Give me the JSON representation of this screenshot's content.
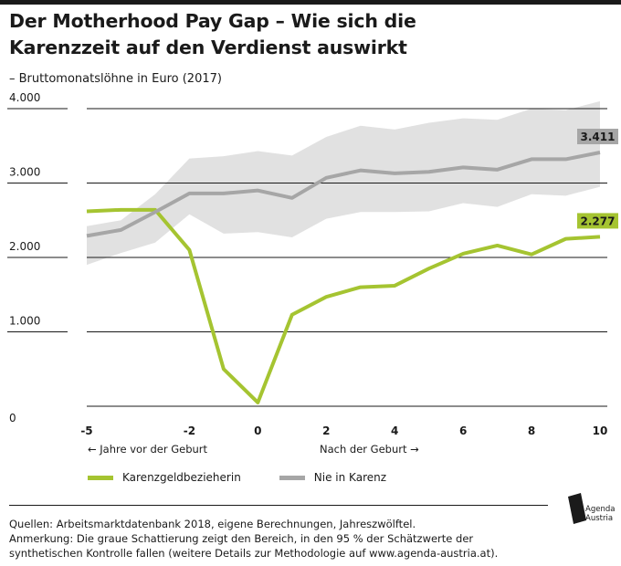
{
  "title_line1": "Der Motherhood Pay Gap – Wie sich die",
  "title_line2": "Karenzzeit auf den Verdienst auswirkt",
  "subtitle": "– Bruttomonatslöhne in Euro (2017)",
  "axis_notes": {
    "left": "← Jahre vor der Geburt",
    "right": "Nach der Geburt →"
  },
  "legend": [
    {
      "label": "Karenzgeldbezieherin",
      "color": "#a5c431"
    },
    {
      "label": "Nie in Karenz",
      "color": "#a6a6a6"
    }
  ],
  "sources": [
    "Quellen: Arbeitsmarktdatenbank 2018, eigene Berechnungen, Jahreszwölftel.",
    "Anmerkung: Die graue Schattierung zeigt den Bereich, in den 95 % der Schätzwerte der",
    "synthetischen Kontrolle fallen (weitere Details zur Methodologie auf www.agenda-austria.at)."
  ],
  "logo": {
    "line1": "Agenda",
    "line2": "Austria"
  },
  "chart_data": {
    "type": "line",
    "ylim": [
      0,
      4000
    ],
    "xlim": [
      -5,
      10
    ],
    "y_ticks": [
      0,
      1000,
      2000,
      3000,
      4000
    ],
    "y_tick_labels": [
      "0",
      "1.000",
      "2.000",
      "3.000",
      "4.000"
    ],
    "x_ticks": [
      -5,
      -2,
      0,
      2,
      4,
      6,
      8,
      10
    ],
    "x_tick_labels": [
      "-5",
      "-2",
      "0",
      "2",
      "4",
      "6",
      "8",
      "10"
    ],
    "series": [
      {
        "name": "Karenzgeldbezieherin",
        "color": "#a5c431",
        "x": [
          -5,
          -4,
          -3,
          -2,
          -1,
          0,
          1,
          2,
          3,
          4,
          5,
          6,
          7,
          8,
          9,
          10
        ],
        "values": [
          2620,
          2640,
          2640,
          2100,
          500,
          50,
          1230,
          1470,
          1600,
          1620,
          1850,
          2050,
          2160,
          2040,
          2250,
          2277
        ],
        "end_label": "2.277"
      },
      {
        "name": "Nie in Karenz",
        "color": "#a6a6a6",
        "x": [
          -5,
          -4,
          -3,
          -2,
          -1,
          0,
          1,
          2,
          3,
          4,
          5,
          6,
          7,
          8,
          9,
          10
        ],
        "values": [
          2290,
          2370,
          2610,
          2860,
          2860,
          2900,
          2800,
          3070,
          3170,
          3130,
          3150,
          3210,
          3180,
          3320,
          3320,
          3411
        ],
        "end_label": "3.411",
        "band_upper": [
          2420,
          2500,
          2850,
          3330,
          3360,
          3430,
          3370,
          3620,
          3770,
          3720,
          3810,
          3870,
          3850,
          4000,
          3980,
          4100
        ],
        "band_lower": [
          1900,
          2060,
          2200,
          2580,
          2320,
          2340,
          2270,
          2520,
          2610,
          2610,
          2620,
          2730,
          2680,
          2850,
          2830,
          2950
        ]
      }
    ],
    "grid": true
  }
}
